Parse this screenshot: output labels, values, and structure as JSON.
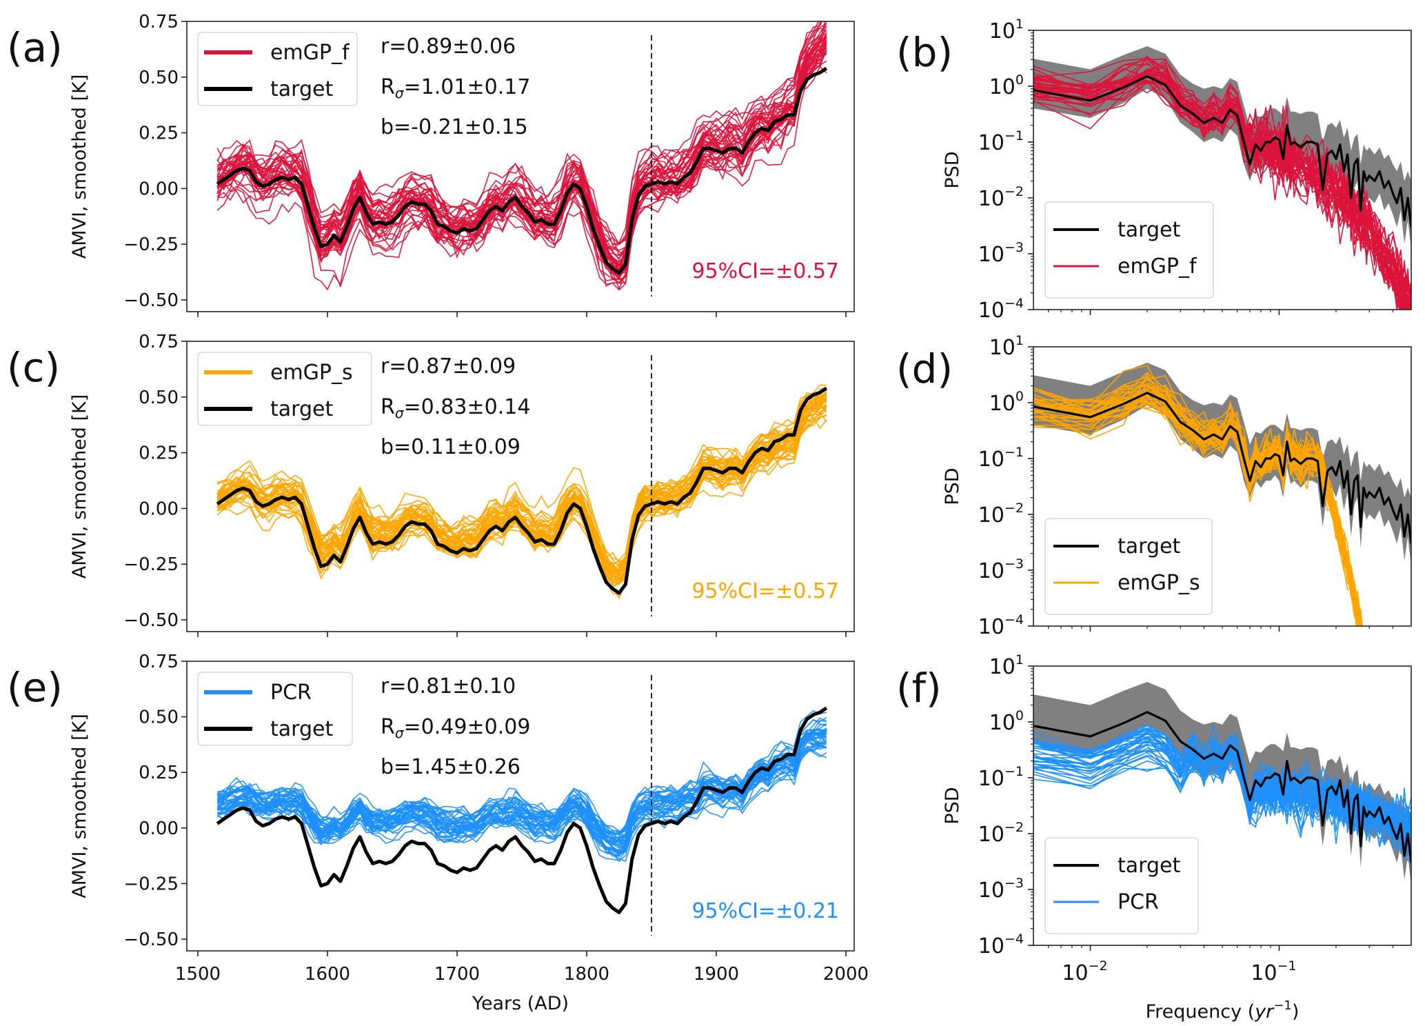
{
  "chart_data": [
    {
      "id": "a",
      "type": "line",
      "panel_label": "(a)",
      "ylabel": "AMVI, smoothed [K]",
      "xlabel": "",
      "xlim": [
        1495,
        2005
      ],
      "ylim": [
        -0.57,
        0.75
      ],
      "yticks": [
        0.75,
        0.5,
        0.25,
        0.0,
        -0.25,
        -0.5
      ],
      "ytick_labels": [
        "0.75",
        "0.50",
        "0.25",
        "0.00",
        "−0.25",
        "−0.50"
      ],
      "xticks": [
        1500,
        1600,
        1700,
        1800,
        1900,
        2000
      ],
      "xtick_labels": [],
      "vline_year": 1850,
      "ensemble_color": "#dc143c",
      "ensemble_name": "emGP_f",
      "ensemble_offset": 0.0,
      "ensemble_scale": 1.0,
      "ensemble_spread": 0.05,
      "late_tilt": 0.12,
      "legend": [
        {
          "label": "emGP_f",
          "color": "#dc143c"
        },
        {
          "label": "target",
          "color": "#000000"
        }
      ],
      "stats": {
        "r": "r=0.89±0.06",
        "R_prefix": "R",
        "R_sub": "σ",
        "R_value": "=1.01±0.17",
        "b": "b=-0.21±0.15"
      },
      "ci_label": "95%CI=±0.57"
    },
    {
      "id": "c",
      "type": "line",
      "panel_label": "(c)",
      "ylabel": "AMVI, smoothed [K]",
      "xlabel": "",
      "xlim": [
        1495,
        2005
      ],
      "ylim": [
        -0.57,
        0.75
      ],
      "yticks": [
        0.75,
        0.5,
        0.25,
        0.0,
        -0.25,
        -0.5
      ],
      "ytick_labels": [
        "0.75",
        "0.50",
        "0.25",
        "0.00",
        "−0.25",
        "−0.50"
      ],
      "xticks": [
        1500,
        1600,
        1700,
        1800,
        1900,
        2000
      ],
      "xtick_labels": [],
      "vline_year": 1850,
      "ensemble_color": "#ffa500",
      "ensemble_name": "emGP_s",
      "ensemble_offset": 0.02,
      "ensemble_scale": 0.85,
      "ensemble_spread": 0.035,
      "late_tilt": 0.0,
      "legend": [
        {
          "label": "emGP_s",
          "color": "#ffa500"
        },
        {
          "label": "target",
          "color": "#000000"
        }
      ],
      "stats": {
        "r": "r=0.87±0.09",
        "R_prefix": "R",
        "R_sub": "σ",
        "R_value": "=0.83±0.14",
        "b": "b=0.11±0.09"
      },
      "ci_label": "95%CI=±0.57"
    },
    {
      "id": "e",
      "type": "line",
      "panel_label": "(e)",
      "ylabel": "AMVI, smoothed [K]",
      "xlabel": "Years (AD)",
      "xlim": [
        1495,
        2005
      ],
      "ylim": [
        -0.57,
        0.75
      ],
      "yticks": [
        0.75,
        0.5,
        0.25,
        0.0,
        -0.25,
        -0.5
      ],
      "ytick_labels": [
        "0.75",
        "0.50",
        "0.25",
        "0.00",
        "−0.25",
        "−0.50"
      ],
      "xticks": [
        1500,
        1600,
        1700,
        1800,
        1900,
        2000
      ],
      "xtick_labels": [
        "1500",
        "1600",
        "1700",
        "1800",
        "1900",
        "2000"
      ],
      "vline_year": 1850,
      "ensemble_color": "#1e90ff",
      "ensemble_name": "PCR",
      "ensemble_offset": 0.1,
      "ensemble_scale": 0.45,
      "ensemble_spread": 0.03,
      "late_tilt": -0.06,
      "legend": [
        {
          "label": "PCR",
          "color": "#1e90ff"
        },
        {
          "label": "target",
          "color": "#000000"
        }
      ],
      "stats": {
        "r": "r=0.81±0.10",
        "R_prefix": "R",
        "R_sub": "σ",
        "R_value": "=0.49±0.09",
        "b": "b=1.45±0.26"
      },
      "ci_label": "95%CI=±0.21"
    },
    {
      "id": "b",
      "type": "line",
      "scale": "log-log",
      "panel_label": "(b)",
      "ylabel": "PSD",
      "xlabel": "",
      "xlim": [
        0.005,
        0.5
      ],
      "ylim": [
        0.0001,
        10
      ],
      "ytick_exponents": [
        1,
        0,
        -1,
        -2,
        -3,
        -4
      ],
      "xtick_exponents": [
        -2,
        -1
      ],
      "show_xtick_labels": false,
      "ensemble_color": "#dc143c",
      "ensemble_name": "emGP_f",
      "ensemble_mode": "steep",
      "legend": [
        {
          "label": "target",
          "color": "#000000"
        },
        {
          "label": "emGP_f",
          "color": "#dc143c"
        }
      ]
    },
    {
      "id": "d",
      "type": "line",
      "scale": "log-log",
      "panel_label": "(d)",
      "ylabel": "PSD",
      "xlabel": "",
      "xlim": [
        0.005,
        0.5
      ],
      "ylim": [
        0.0001,
        10
      ],
      "ytick_exponents": [
        1,
        0,
        -1,
        -2,
        -3,
        -4
      ],
      "xtick_exponents": [
        -2,
        -1
      ],
      "show_xtick_labels": false,
      "ensemble_color": "#ffa500",
      "ensemble_name": "emGP_s",
      "ensemble_mode": "cutoff",
      "legend": [
        {
          "label": "target",
          "color": "#000000"
        },
        {
          "label": "emGP_s",
          "color": "#ffa500"
        }
      ]
    },
    {
      "id": "f",
      "type": "line",
      "scale": "log-log",
      "panel_label": "(f)",
      "ylabel": "PSD",
      "xlabel": "Frequency (yr⁻¹)",
      "xlabel_main": "Frequency (",
      "xlabel_italic": "yr",
      "xlabel_sup": "−1",
      "xlabel_close": ")",
      "xlim": [
        0.005,
        0.5
      ],
      "ylim": [
        0.0001,
        10
      ],
      "ytick_exponents": [
        1,
        0,
        -1,
        -2,
        -3,
        -4
      ],
      "xtick_exponents": [
        -2,
        -1
      ],
      "show_xtick_labels": true,
      "ensemble_color": "#1e90ff",
      "ensemble_name": "PCR",
      "ensemble_mode": "flat",
      "legend": [
        {
          "label": "target",
          "color": "#000000"
        },
        {
          "label": "PCR",
          "color": "#1e90ff"
        }
      ]
    }
  ],
  "target_series": {
    "name": "target",
    "years": [
      1515,
      1520,
      1525,
      1530,
      1535,
      1540,
      1545,
      1550,
      1555,
      1560,
      1565,
      1570,
      1575,
      1580,
      1585,
      1590,
      1595,
      1600,
      1605,
      1610,
      1615,
      1620,
      1625,
      1630,
      1635,
      1640,
      1645,
      1650,
      1655,
      1660,
      1665,
      1670,
      1675,
      1680,
      1685,
      1690,
      1695,
      1700,
      1705,
      1710,
      1715,
      1720,
      1725,
      1730,
      1735,
      1740,
      1745,
      1750,
      1755,
      1760,
      1765,
      1770,
      1775,
      1780,
      1785,
      1790,
      1795,
      1800,
      1805,
      1810,
      1815,
      1820,
      1825,
      1830,
      1835,
      1840,
      1845,
      1850,
      1855,
      1860,
      1865,
      1870,
      1875,
      1880,
      1885,
      1890,
      1895,
      1900,
      1905,
      1910,
      1915,
      1920,
      1925,
      1930,
      1935,
      1940,
      1945,
      1950,
      1955,
      1960,
      1965,
      1970,
      1975,
      1980,
      1985
    ],
    "values": [
      0.02,
      0.04,
      0.06,
      0.08,
      0.09,
      0.08,
      0.03,
      0.01,
      0.02,
      0.04,
      0.05,
      0.04,
      0.05,
      0.02,
      -0.08,
      -0.18,
      -0.26,
      -0.25,
      -0.21,
      -0.24,
      -0.17,
      -0.09,
      -0.04,
      -0.11,
      -0.16,
      -0.15,
      -0.16,
      -0.15,
      -0.12,
      -0.08,
      -0.06,
      -0.07,
      -0.07,
      -0.1,
      -0.16,
      -0.17,
      -0.19,
      -0.2,
      -0.18,
      -0.19,
      -0.18,
      -0.14,
      -0.1,
      -0.08,
      -0.1,
      -0.06,
      -0.04,
      -0.08,
      -0.11,
      -0.15,
      -0.14,
      -0.16,
      -0.16,
      -0.1,
      -0.02,
      0.02,
      0.0,
      -0.08,
      -0.18,
      -0.26,
      -0.33,
      -0.36,
      -0.38,
      -0.34,
      -0.14,
      -0.03,
      0.01,
      0.02,
      0.03,
      0.02,
      0.03,
      0.02,
      0.05,
      0.07,
      0.12,
      0.18,
      0.18,
      0.17,
      0.16,
      0.18,
      0.18,
      0.16,
      0.21,
      0.25,
      0.27,
      0.26,
      0.3,
      0.31,
      0.33,
      0.33,
      0.44,
      0.49,
      0.51,
      0.52,
      0.54
    ]
  },
  "target_psd": {
    "name": "target",
    "freq": [
      0.005,
      0.01,
      0.015,
      0.02,
      0.025,
      0.03,
      0.035,
      0.04,
      0.045,
      0.05,
      0.055,
      0.06,
      0.065,
      0.07,
      0.075,
      0.08,
      0.085,
      0.09,
      0.095,
      0.1,
      0.105,
      0.11,
      0.115,
      0.12,
      0.13,
      0.14,
      0.15,
      0.16,
      0.17,
      0.18,
      0.19,
      0.2,
      0.21,
      0.22,
      0.23,
      0.24,
      0.25,
      0.26,
      0.27,
      0.28,
      0.29,
      0.3,
      0.32,
      0.34,
      0.36,
      0.38,
      0.4,
      0.42,
      0.44,
      0.46,
      0.48,
      0.5
    ],
    "psd": [
      0.85,
      0.55,
      0.95,
      1.5,
      1.05,
      0.45,
      0.32,
      0.22,
      0.27,
      0.22,
      0.38,
      0.3,
      0.1,
      0.04,
      0.09,
      0.07,
      0.1,
      0.1,
      0.12,
      0.11,
      0.05,
      0.2,
      0.09,
      0.1,
      0.08,
      0.1,
      0.1,
      0.09,
      0.014,
      0.06,
      0.07,
      0.05,
      0.09,
      0.03,
      0.06,
      0.01,
      0.04,
      0.05,
      0.006,
      0.03,
      0.02,
      0.025,
      0.02,
      0.03,
      0.015,
      0.02,
      0.012,
      0.008,
      0.015,
      0.004,
      0.01,
      0.003
    ],
    "ci_upper": [
      3.1,
      2.0,
      3.6,
      5.2,
      3.8,
      1.6,
      1.1,
      0.9,
      1.0,
      0.9,
      1.4,
      1.2,
      0.45,
      0.18,
      0.3,
      0.28,
      0.35,
      0.4,
      0.4,
      0.35,
      0.3,
      0.65,
      0.35,
      0.35,
      0.32,
      0.35,
      0.35,
      0.32,
      0.1,
      0.2,
      0.22,
      0.18,
      0.25,
      0.12,
      0.18,
      0.07,
      0.12,
      0.14,
      0.04,
      0.09,
      0.07,
      0.08,
      0.06,
      0.08,
      0.05,
      0.06,
      0.04,
      0.03,
      0.045,
      0.02,
      0.03,
      0.02
    ],
    "ci_lower": [
      0.4,
      0.27,
      0.5,
      0.9,
      0.6,
      0.22,
      0.15,
      0.1,
      0.12,
      0.1,
      0.17,
      0.13,
      0.04,
      0.02,
      0.04,
      0.03,
      0.04,
      0.04,
      0.05,
      0.04,
      0.02,
      0.07,
      0.035,
      0.04,
      0.03,
      0.04,
      0.04,
      0.035,
      0.006,
      0.025,
      0.03,
      0.02,
      0.035,
      0.012,
      0.025,
      0.004,
      0.015,
      0.02,
      0.0025,
      0.012,
      0.008,
      0.01,
      0.008,
      0.012,
      0.006,
      0.008,
      0.005,
      0.003,
      0.006,
      0.0015,
      0.004,
      0.0012
    ]
  },
  "colors": {
    "emGP_f": "#dc143c",
    "emGP_s": "#ffa500",
    "PCR": "#1e90ff",
    "target": "#000000",
    "ci_band": "#808080"
  }
}
